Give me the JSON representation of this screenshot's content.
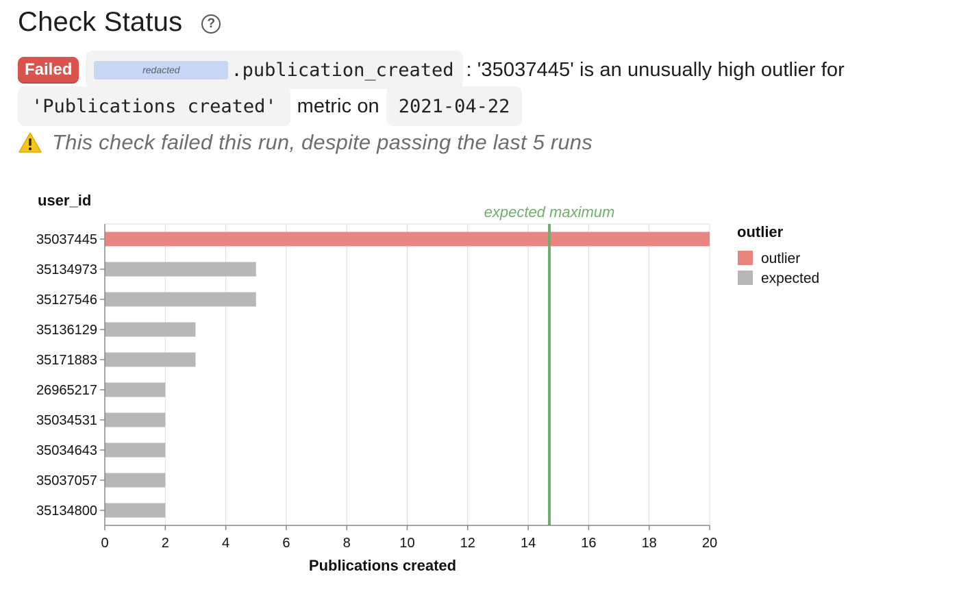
{
  "header": {
    "title": "Check Status",
    "help_icon": "question-circle-icon"
  },
  "status": {
    "badge": "Failed",
    "badge_color": "#d9534f",
    "redacted_label": "redacted",
    "field": ".publication_created",
    "message_part1": ": '35037445' is an unusually high outlier for",
    "metric_name": "'Publications created'",
    "message_part2": "metric on",
    "date": "2021-04-22"
  },
  "warning": {
    "icon": "warning-triangle-icon",
    "text": "This check failed this run, despite passing the last 5 runs"
  },
  "chart_data": {
    "type": "bar",
    "orientation": "horizontal",
    "ylabel": "user_id",
    "xlabel": "Publications created",
    "xlim": [
      0,
      20
    ],
    "xticks": [
      0,
      2,
      4,
      6,
      8,
      10,
      12,
      14,
      16,
      18,
      20
    ],
    "grid": true,
    "categories": [
      "35037445",
      "35134973",
      "35127546",
      "35136129",
      "35171883",
      "26965217",
      "35034531",
      "35034643",
      "35037057",
      "35134800"
    ],
    "values": [
      20,
      5,
      5,
      3,
      3,
      2,
      2,
      2,
      2,
      2
    ],
    "outlier": [
      "outlier",
      "expected",
      "expected",
      "expected",
      "expected",
      "expected",
      "expected",
      "expected",
      "expected",
      "expected"
    ],
    "colors": {
      "outlier": "#e88581",
      "expected": "#b7b7b7",
      "threshold": "#6fae6b"
    },
    "threshold": {
      "label": "expected maximum",
      "value": 14.7
    },
    "legend": {
      "title": "outlier",
      "position": "right",
      "entries": [
        {
          "key": "outlier",
          "label": "outlier"
        },
        {
          "key": "expected",
          "label": "expected"
        }
      ]
    }
  }
}
